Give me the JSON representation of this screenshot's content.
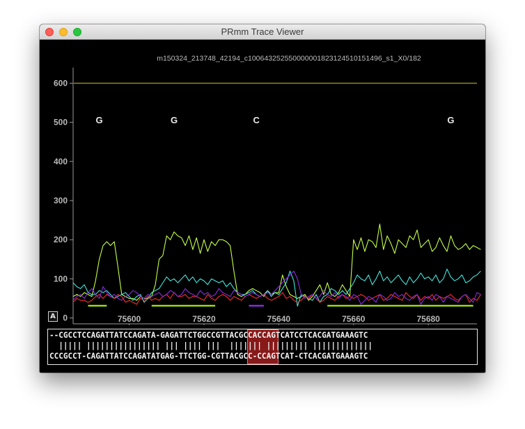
{
  "window": {
    "title": "PRmm Trace Viewer"
  },
  "chart_data": {
    "type": "line",
    "title": "m150324_213748_42194_c100643252550000001823124510151496_s1_X0/182",
    "xlabel": "",
    "ylabel": "",
    "xlim": [
      75585,
      75693
    ],
    "ylim": [
      -15,
      640
    ],
    "xticks": [
      75600,
      75620,
      75640,
      75660,
      75680
    ],
    "yticks": [
      0,
      100,
      200,
      300,
      400,
      500,
      600
    ],
    "grid": false,
    "reference_line": {
      "y": 600,
      "color": "#8f8a2a"
    },
    "base_labels": [
      {
        "x": 75592,
        "label": "G"
      },
      {
        "x": 75612,
        "label": "G"
      },
      {
        "x": 75634,
        "label": "C"
      },
      {
        "x": 75686,
        "label": "G"
      }
    ],
    "pulse_segments": [
      {
        "x0": 75589,
        "x1": 75594,
        "color": "#9bdc12"
      },
      {
        "x0": 75606,
        "x1": 75623,
        "color": "#9bdc12"
      },
      {
        "x0": 75632,
        "x1": 75636,
        "color": "#8a2be2"
      },
      {
        "x0": 75653,
        "x1": 75692,
        "color": "#9bdc12"
      }
    ],
    "x_start": 75585,
    "x_step": 1,
    "series": [
      {
        "color": "#c6ff45",
        "values": [
          55,
          60,
          55,
          65,
          60,
          55,
          95,
          150,
          185,
          195,
          185,
          195,
          130,
          60,
          55,
          50,
          50,
          45,
          55,
          50,
          50,
          55,
          85,
          150,
          160,
          210,
          200,
          220,
          210,
          205,
          185,
          210,
          175,
          205,
          165,
          200,
          170,
          195,
          185,
          200,
          200,
          195,
          185,
          120,
          60,
          55,
          60,
          70,
          75,
          70,
          65,
          55,
          70,
          60,
          65,
          65,
          110,
          80,
          60,
          55,
          50,
          55,
          60,
          45,
          55,
          70,
          85,
          60,
          90,
          60,
          55,
          65,
          85,
          70,
          55,
          200,
          175,
          205,
          170,
          200,
          195,
          180,
          240,
          175,
          210,
          190,
          165,
          200,
          190,
          180,
          210,
          200,
          225,
          180,
          190,
          200,
          170,
          180,
          205,
          185,
          170,
          210,
          185,
          175,
          180,
          190,
          175,
          185,
          180,
          175
        ]
      },
      {
        "color": "#3fe8e0",
        "values": [
          90,
          80,
          75,
          85,
          65,
          60,
          60,
          70,
          65,
          70,
          60,
          50,
          55,
          60,
          65,
          55,
          45,
          55,
          60,
          40,
          50,
          65,
          70,
          75,
          90,
          105,
          95,
          100,
          90,
          100,
          110,
          95,
          105,
          90,
          100,
          95,
          85,
          100,
          95,
          90,
          95,
          80,
          90,
          75,
          65,
          60,
          60,
          65,
          70,
          60,
          55,
          60,
          70,
          55,
          65,
          60,
          75,
          90,
          120,
          95,
          30,
          60,
          55,
          50,
          45,
          60,
          40,
          55,
          60,
          75,
          70,
          60,
          70,
          60,
          75,
          90,
          110,
          100,
          95,
          110,
          85,
          100,
          120,
          95,
          105,
          90,
          100,
          110,
          95,
          85,
          105,
          90,
          100,
          115,
          100,
          105,
          95,
          110,
          90,
          100,
          125,
          105,
          95,
          100,
          110,
          90,
          95,
          105,
          110,
          120
        ]
      },
      {
        "color": "#ff2a2a",
        "values": [
          40,
          50,
          45,
          45,
          40,
          45,
          55,
          60,
          50,
          60,
          55,
          50,
          60,
          55,
          40,
          45,
          40,
          35,
          50,
          45,
          55,
          45,
          50,
          45,
          55,
          60,
          50,
          65,
          55,
          55,
          60,
          50,
          55,
          55,
          50,
          45,
          60,
          50,
          45,
          55,
          60,
          55,
          45,
          55,
          50,
          45,
          55,
          60,
          55,
          50,
          55,
          60,
          50,
          45,
          50,
          55,
          65,
          50,
          55,
          45,
          40,
          45,
          55,
          50,
          60,
          50,
          40,
          45,
          55,
          50,
          45,
          55,
          60,
          50,
          55,
          50,
          55,
          60,
          55,
          45,
          50,
          55,
          60,
          45,
          50,
          60,
          55,
          50,
          45,
          65,
          55,
          50,
          60,
          45,
          55,
          50,
          60,
          45,
          55,
          50,
          55,
          60,
          50,
          45,
          55,
          60,
          40,
          50,
          45,
          60
        ]
      },
      {
        "color": "#8a2be2",
        "values": [
          45,
          55,
          60,
          50,
          65,
          75,
          60,
          50,
          80,
          65,
          55,
          60,
          50,
          45,
          55,
          60,
          70,
          65,
          55,
          50,
          60,
          55,
          60,
          65,
          55,
          60,
          70,
          65,
          55,
          60,
          75,
          65,
          60,
          55,
          70,
          60,
          65,
          55,
          60,
          75,
          65,
          60,
          55,
          70,
          65,
          60,
          55,
          60,
          65,
          60,
          55,
          60,
          65,
          60,
          70,
          80,
          90,
          100,
          110,
          120,
          100,
          60,
          50,
          55,
          60,
          50,
          55,
          70,
          60,
          55,
          65,
          50,
          60,
          55,
          45,
          60,
          55,
          35,
          45,
          55,
          50,
          40,
          60,
          55,
          45,
          50,
          65,
          55,
          60,
          50,
          45,
          55,
          60,
          35,
          50,
          55,
          45,
          60,
          55,
          40,
          55,
          50,
          45,
          40,
          55,
          60,
          50,
          40,
          65,
          60
        ]
      }
    ]
  },
  "alignment": {
    "rows": [
      "--CGCCTCCAGATTATCCAGATA-GAGATTCTGGCCGTTACGCCACCAGTCATCCTCACGATGAAAGTC",
      "  ||||| |||||||||||||||| ||| |||| |||  ||||||| ||||||||| |||||||||||||",
      "CCCGCCT-CAGATTATCCAGATATGAG-TTCTGG-CGTTACGCC-CCAGTCAT-CTCACGATGAAAGTC"
    ],
    "highlight_color": "#dc2828"
  },
  "controls": {
    "a_button_label": "A"
  }
}
